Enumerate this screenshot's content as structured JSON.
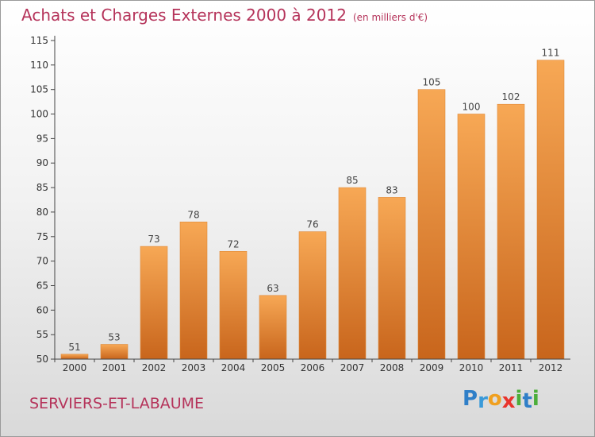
{
  "header": {
    "title": "Achats et Charges Externes 2000 à 2012",
    "subtitle": "(en milliers d'€)"
  },
  "footer": {
    "commune": "SERVIERS-ET-LABAUME"
  },
  "logo": {
    "letters": [
      "P",
      "r",
      "o",
      "x",
      "i",
      "t",
      "i"
    ],
    "colors": [
      "#2f7fc8",
      "#3a9ad9",
      "#f0a020",
      "#e8342c",
      "#4cae3a",
      "#2f7fc8",
      "#4cae3a"
    ]
  },
  "colors": {
    "bar_top": "#f7a855",
    "bar_bottom": "#c8651c",
    "title": "#b5335a",
    "axis": "#444444",
    "grid": "#d8d8d8"
  },
  "chart_data": {
    "type": "bar",
    "title": "Achats et Charges Externes 2000 à 2012",
    "subtitle": "(en milliers d'€)",
    "categories": [
      "2000",
      "2001",
      "2002",
      "2003",
      "2004",
      "2005",
      "2006",
      "2007",
      "2008",
      "2009",
      "2010",
      "2011",
      "2012"
    ],
    "values": [
      51,
      53,
      73,
      78,
      72,
      63,
      76,
      85,
      83,
      105,
      100,
      102,
      111
    ],
    "ylim": [
      50,
      115
    ],
    "yticks": [
      50,
      55,
      60,
      65,
      70,
      75,
      80,
      85,
      90,
      95,
      100,
      105,
      110,
      115
    ],
    "grid": false,
    "legend": "none"
  }
}
